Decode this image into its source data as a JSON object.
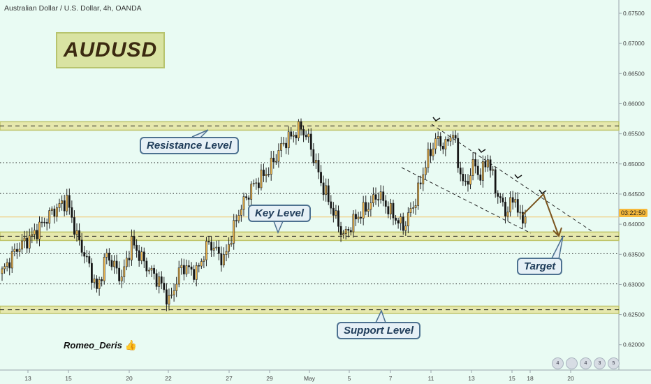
{
  "header": {
    "title": "Australian Dollar / U.S. Dollar, 4h, OANDA"
  },
  "symbol_box": "AUDUSD",
  "callouts": {
    "resistance": "Resistance  Level",
    "key": "Key Level",
    "support": "Support Level",
    "target": "Target"
  },
  "author": "Romeo_Deris",
  "time_badge": "03:22:50",
  "icons": [
    {
      "name": "indicator-icon",
      "label": "4"
    },
    {
      "name": "comments-icon",
      "label": ""
    },
    {
      "name": "likes-icon",
      "label": "4"
    },
    {
      "name": "shares-icon",
      "label": "3"
    },
    {
      "name": "ideas-icon",
      "label": "5"
    }
  ],
  "colors": {
    "background": "#e9fbf3",
    "bull": "#f2b84b",
    "bear": "#111111",
    "zone_fill": "#e8eab0",
    "zone_border": "#bfc46a",
    "arrow": "#7a5520"
  },
  "chart_data": {
    "type": "candlestick",
    "title": "Australian Dollar / U.S. Dollar, 4h, OANDA",
    "ylim": [
      0.6158,
      0.6772
    ],
    "y_ticks": [
      "0.67500",
      "0.67000",
      "0.66500",
      "0.66000",
      "0.65500",
      "0.65000",
      "0.64500",
      "0.64000",
      "0.63500",
      "0.63000",
      "0.62500",
      "0.62000"
    ],
    "x_ticks": [
      "13",
      "15",
      "20",
      "22",
      "27",
      "29",
      "May",
      "5",
      "7",
      "11",
      "13",
      "15",
      "18",
      "20"
    ],
    "grid": false,
    "levels": [
      {
        "name": "resistance",
        "price": 0.6563,
        "zone": [
          0.6556,
          0.657
        ]
      },
      {
        "name": "key",
        "price": 0.638,
        "zone": [
          0.6373,
          0.6387
        ]
      },
      {
        "name": "support",
        "price": 0.6258,
        "zone": [
          0.6252,
          0.6264
        ]
      },
      {
        "name": "dotted",
        "price": 0.6502
      },
      {
        "name": "dotted",
        "price": 0.6451
      },
      {
        "name": "dotted",
        "price": 0.6351
      },
      {
        "name": "dotted",
        "price": 0.6301
      }
    ],
    "current_price": 0.6412,
    "anchors": [
      [
        0,
        0.632
      ],
      [
        6,
        0.636
      ],
      [
        12,
        0.638
      ],
      [
        20,
        0.642
      ],
      [
        26,
        0.644
      ],
      [
        30,
        0.638
      ],
      [
        35,
        0.633
      ],
      [
        38,
        0.629
      ],
      [
        42,
        0.635
      ],
      [
        48,
        0.631
      ],
      [
        52,
        0.637
      ],
      [
        58,
        0.633
      ],
      [
        64,
        0.63
      ],
      [
        67,
        0.627
      ],
      [
        72,
        0.633
      ],
      [
        78,
        0.632
      ],
      [
        83,
        0.637
      ],
      [
        89,
        0.634
      ],
      [
        95,
        0.642
      ],
      [
        100,
        0.646
      ],
      [
        107,
        0.649
      ],
      [
        113,
        0.6535
      ],
      [
        120,
        0.656
      ],
      [
        123,
        0.654
      ],
      [
        128,
        0.647
      ],
      [
        133,
        0.642
      ],
      [
        137,
        0.638
      ],
      [
        142,
        0.641
      ],
      [
        147,
        0.643
      ],
      [
        151,
        0.645
      ],
      [
        156,
        0.642
      ],
      [
        161,
        0.6395
      ],
      [
        166,
        0.644
      ],
      [
        170,
        0.65
      ],
      [
        174,
        0.654
      ],
      [
        178,
        0.653
      ],
      [
        181,
        0.6555
      ],
      [
        183,
        0.65
      ],
      [
        186,
        0.646
      ],
      [
        189,
        0.65
      ],
      [
        192,
        0.648
      ],
      [
        195,
        0.651
      ],
      [
        198,
        0.646
      ],
      [
        202,
        0.642
      ],
      [
        206,
        0.6445
      ],
      [
        208,
        0.6405
      ],
      [
        210,
        0.6415
      ]
    ]
  }
}
